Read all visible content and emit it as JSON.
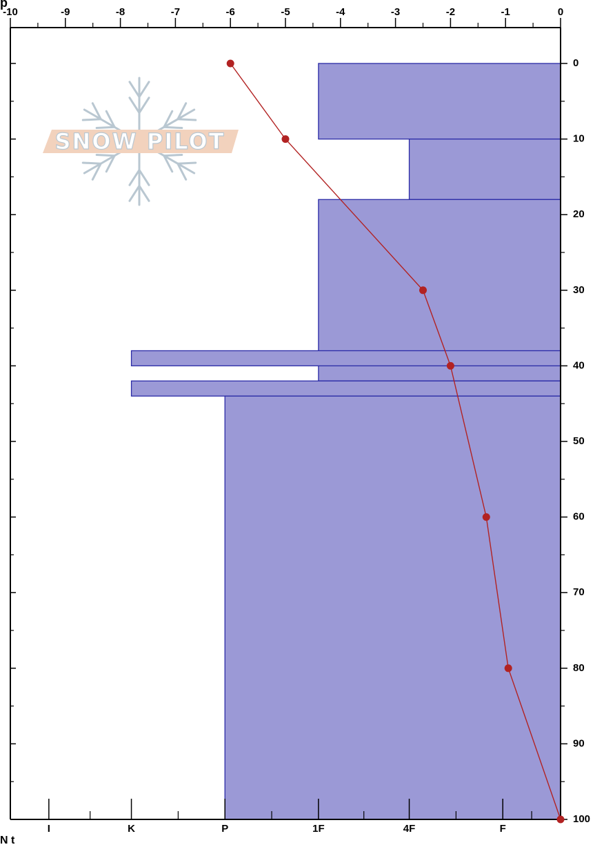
{
  "header_fragment": "p",
  "footer_fragment": "N t",
  "logo": {
    "text": "SNOW PILOT"
  },
  "colors": {
    "layer_fill": "#9b99d6",
    "layer_stroke": "#2a2aa6",
    "temperature": "#b22222",
    "frame": "#000000"
  },
  "chart_data": {
    "type": "profile",
    "top_axis": {
      "label": "",
      "ticks": [
        -10,
        -9,
        -8,
        -7,
        -6,
        -5,
        -4,
        -3,
        -2,
        -1,
        0
      ],
      "range": [
        -10,
        0
      ]
    },
    "right_axis": {
      "label": "",
      "ticks": [
        0,
        10,
        20,
        30,
        40,
        50,
        60,
        70,
        80,
        90,
        100
      ],
      "range": [
        0,
        100
      ]
    },
    "bottom_axis": {
      "label": "",
      "ticks": [
        "I",
        "K",
        "P",
        "1F",
        "4F",
        "F"
      ],
      "tick_positions": [
        -9.3,
        -7.8,
        -6.1,
        -4.4,
        -2.75,
        -1.05
      ]
    },
    "layers": [
      {
        "top": 0,
        "bottom": 10,
        "hardness": "1F"
      },
      {
        "top": 10,
        "bottom": 18,
        "hardness": "4F"
      },
      {
        "top": 18,
        "bottom": 42,
        "hardness": "1F"
      },
      {
        "top": 38,
        "bottom": 40,
        "hardness": "K"
      },
      {
        "top": 42,
        "bottom": 44,
        "hardness": "K"
      },
      {
        "top": 44,
        "bottom": 100,
        "hardness": "P"
      }
    ],
    "temperature_profile": {
      "depth": [
        0,
        10,
        30,
        40,
        60,
        80,
        100
      ],
      "temp": [
        -6,
        -5,
        -2.5,
        -2,
        -1.35,
        -0.95,
        0
      ]
    }
  }
}
